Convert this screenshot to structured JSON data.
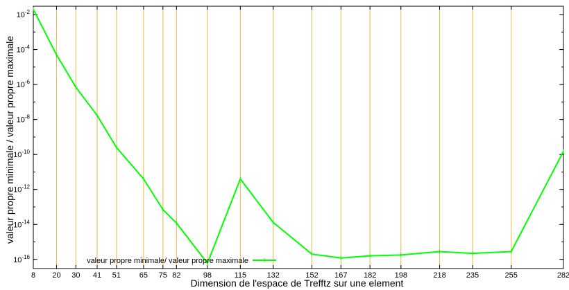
{
  "chart_data": {
    "type": "line",
    "title": "",
    "xlabel": "Dimension de l'espace de Trefftz sur une element",
    "ylabel": "valeur propre minimale / valeur propre maximale",
    "x_ticks": [
      "8",
      "20",
      "30",
      "41",
      "51",
      "65",
      "75",
      "82",
      "98",
      "115",
      "132",
      "152",
      "167",
      "182",
      "198",
      "218",
      "235",
      "255",
      "282"
    ],
    "y_scale": "log",
    "y_ticks": [
      {
        "base": "10",
        "exp": "-16",
        "value": 1e-16
      },
      {
        "base": "10",
        "exp": "-14",
        "value": 1e-14
      },
      {
        "base": "10",
        "exp": "-12",
        "value": 1e-12
      },
      {
        "base": "10",
        "exp": "-10",
        "value": 1e-10
      },
      {
        "base": "10",
        "exp": "-8",
        "value": 1e-08
      },
      {
        "base": "10",
        "exp": "-6",
        "value": 1e-06
      },
      {
        "base": "10",
        "exp": "-4",
        "value": 0.0001
      },
      {
        "base": "10",
        "exp": "-2",
        "value": 0.01
      }
    ],
    "ylim": [
      3e-17,
      0.03
    ],
    "grid": "vertical lines at x ticks",
    "legend_position": "bottom-left",
    "series": [
      {
        "name": "valeur propre minimale/ valeur propre maximale",
        "color": "#00ff00",
        "x": [
          "8",
          "20",
          "30",
          "41",
          "51",
          "65",
          "75",
          "82",
          "98",
          "115",
          "132",
          "152",
          "167",
          "182",
          "198",
          "218",
          "235",
          "255",
          "282"
        ],
        "values": [
          0.02,
          5e-05,
          7e-07,
          1.7e-08,
          2.5e-10,
          4e-12,
          7e-14,
          1.2e-14,
          6e-17,
          4e-12,
          1.3e-14,
          2e-16,
          1.2e-16,
          1.6e-16,
          1.8e-16,
          2.8e-16,
          2.2e-16,
          2.8e-16,
          1.5e-10
        ]
      }
    ]
  },
  "colors": {
    "grid": "#e8b94a",
    "series": "#00ff00"
  }
}
